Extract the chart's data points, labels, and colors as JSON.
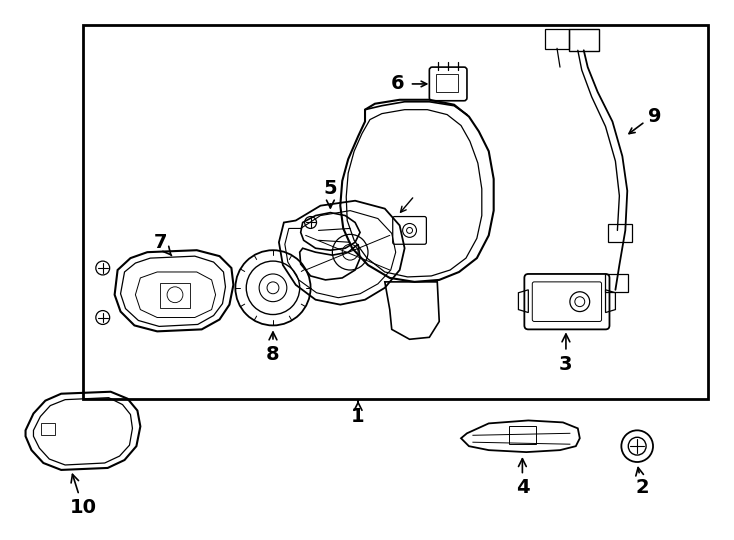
{
  "bg_color": "#ffffff",
  "line_color": "#000000",
  "text_color": "#000000",
  "fig_width": 7.34,
  "fig_height": 5.4,
  "dpi": 100,
  "font_size_numbers": 14
}
